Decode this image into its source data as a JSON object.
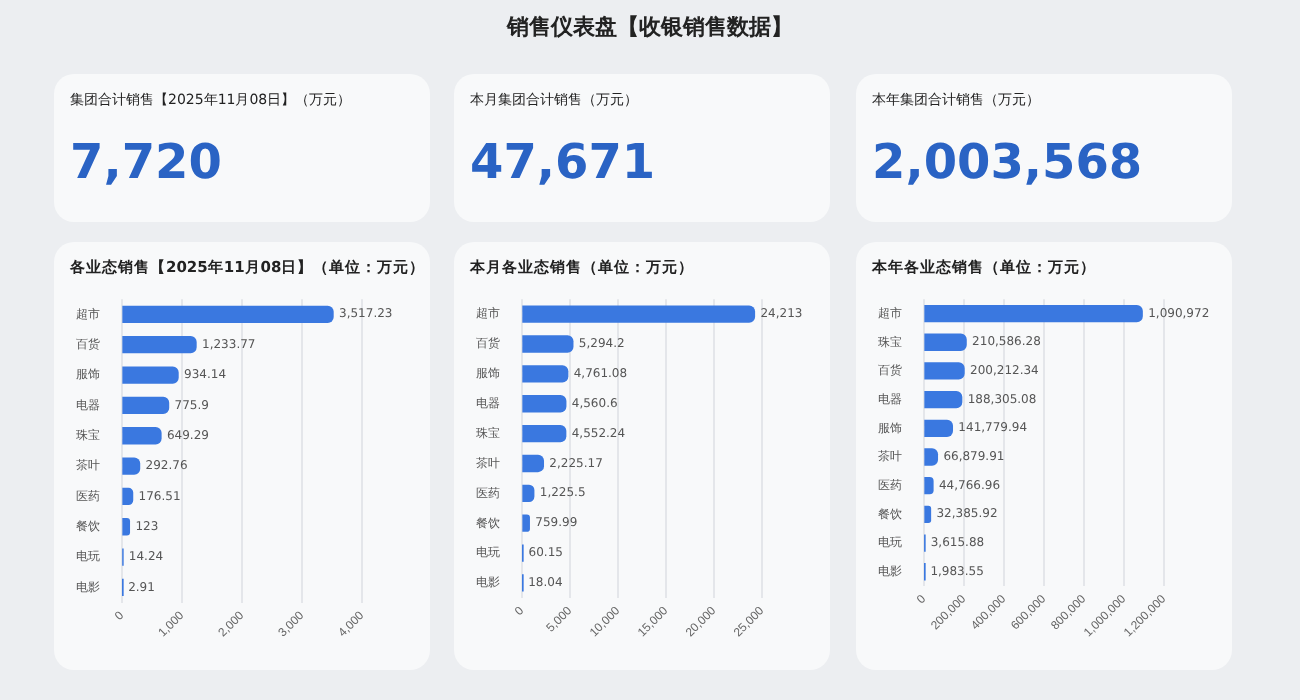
{
  "chart_data": [
    {
      "type": "other",
      "title": "销售仪表盘【收银销售数据】"
    },
    {
      "type": "other",
      "title": "集团合计销售【2025年11月08日】（万元）",
      "annotations": [
        "7,720"
      ]
    },
    {
      "type": "other",
      "title": "本月集团合计销售（万元）",
      "annotations": [
        "47,671"
      ]
    },
    {
      "type": "other",
      "title": "本年集团合计销售（万元）",
      "annotations": [
        "2,003,568"
      ]
    },
    {
      "type": "bar",
      "orientation": "horizontal",
      "title": "各业态销售【2025年11月08日】（单位：万元）",
      "categories": [
        "超市",
        "百货",
        "服饰",
        "电器",
        "珠宝",
        "茶叶",
        "医药",
        "餐饮",
        "电玩",
        "电影"
      ],
      "values": [
        3517.23,
        1233.77,
        934.14,
        775.9,
        649.29,
        292.76,
        176.51,
        123,
        14.24,
        2.91
      ],
      "value_labels": [
        "3,517.23",
        "1,233.77",
        "934.14",
        "775.9",
        "649.29",
        "292.76",
        "176.51",
        "123",
        "14.24",
        "2.91"
      ],
      "color": "#3a78e0",
      "xlim": [
        0,
        4000
      ],
      "xticks": [
        {
          "value": 0,
          "label": "0"
        },
        {
          "value": 1000,
          "label": "1,000"
        },
        {
          "value": 2000,
          "label": "2,000"
        },
        {
          "value": 3000,
          "label": "3,000"
        },
        {
          "value": 4000,
          "label": "4,000"
        }
      ],
      "grid": "x"
    },
    {
      "type": "bar",
      "orientation": "horizontal",
      "title": "本月各业态销售（单位：万元）",
      "categories": [
        "超市",
        "百货",
        "服饰",
        "电器",
        "珠宝",
        "茶叶",
        "医药",
        "餐饮",
        "电玩",
        "电影"
      ],
      "values": [
        24213,
        5294.2,
        4761.08,
        4560.6,
        4552.24,
        2225.17,
        1225.5,
        759.99,
        60.15,
        18.04
      ],
      "value_labels": [
        "24,213",
        "5,294.2",
        "4,761.08",
        "4,560.6",
        "4,552.24",
        "2,225.17",
        "1,225.5",
        "759.99",
        "60.15",
        "18.04"
      ],
      "color": "#3a78e0",
      "xlim": [
        0,
        25000
      ],
      "xticks": [
        {
          "value": 0,
          "label": "0"
        },
        {
          "value": 5000,
          "label": "5,000"
        },
        {
          "value": 10000,
          "label": "10,000"
        },
        {
          "value": 15000,
          "label": "15,000"
        },
        {
          "value": 20000,
          "label": "20,000"
        },
        {
          "value": 25000,
          "label": "25,000"
        }
      ],
      "grid": "x"
    },
    {
      "type": "bar",
      "orientation": "horizontal",
      "title": "本年各业态销售（单位：万元）",
      "categories": [
        "超市",
        "珠宝",
        "百货",
        "电器",
        "服饰",
        "茶叶",
        "医药",
        "餐饮",
        "电玩",
        "电影"
      ],
      "values": [
        1090972,
        210586.28,
        200212.34,
        188305.08,
        141779.94,
        66879.91,
        44766.96,
        32385.92,
        3615.88,
        1983.55
      ],
      "value_labels": [
        "1,090,972",
        "210,586.28",
        "200,212.34",
        "188,305.08",
        "141,779.94",
        "66,879.91",
        "44,766.96",
        "32,385.92",
        "3,615.88",
        "1,983.55"
      ],
      "color": "#3a78e0",
      "xlim": [
        0,
        1200000
      ],
      "xticks": [
        {
          "value": 0,
          "label": "0"
        },
        {
          "value": 200000,
          "label": "200,000"
        },
        {
          "value": 400000,
          "label": "400,000"
        },
        {
          "value": 600000,
          "label": "600,000"
        },
        {
          "value": 800000,
          "label": "800,000"
        },
        {
          "value": 1000000,
          "label": "1,000,000"
        },
        {
          "value": 1200000,
          "label": "1,200,000"
        }
      ],
      "grid": "x"
    }
  ]
}
